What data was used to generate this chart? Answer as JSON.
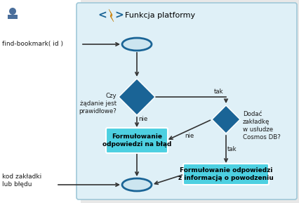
{
  "bg_color": "#dff0f7",
  "white_bg": "#ffffff",
  "title": "Funkcja platformy",
  "start_label": "find-bookmark( id )",
  "diamond1_label": "Czy\nżądanie jest\nprawidłowe?",
  "diamond2_label": "Dodać\nzakładkę\nw usłudze\nCosmos DB?",
  "box1_label": "Formułowanie\nodpowiedzi na błąd",
  "box2_label": "Formułowanie odpowiedzi\nz informacją o powodzeniu",
  "end_label": "kod zakładki\nlub błędu",
  "nie1": "nie",
  "nie2": "nie",
  "tak1": "tak",
  "tak2": "tak",
  "diamond_color": "#1a6496",
  "box_color": "#4dd0e1",
  "oval_border": "#1a6496",
  "oval_fill": "#cce5f0",
  "arrow_color": "#333333",
  "text_dark": "#1a1a1a",
  "panel_border": "#a0c8d8",
  "fig_bg": "#e8e8e8"
}
